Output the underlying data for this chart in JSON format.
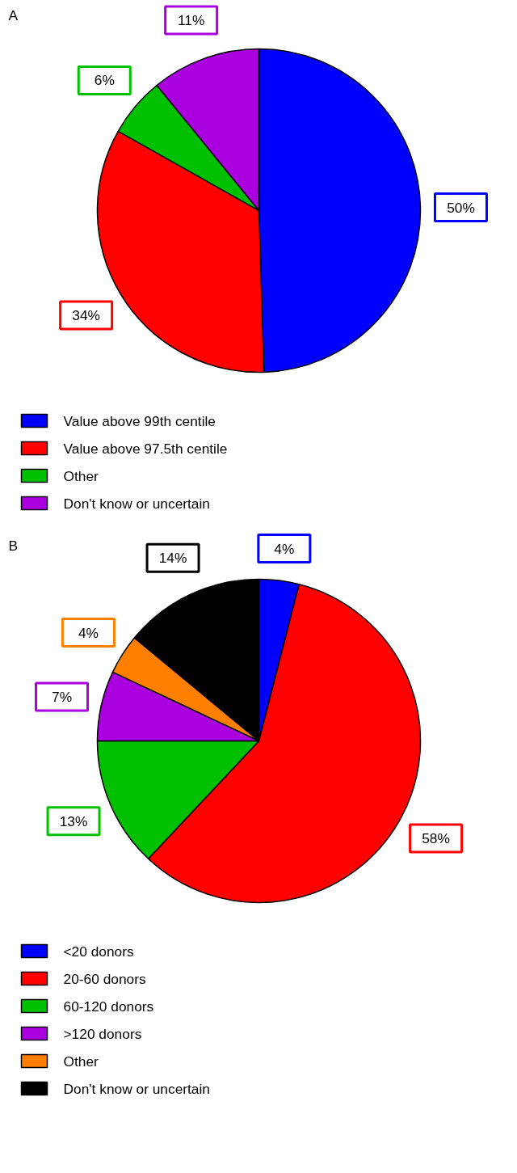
{
  "chart_data": [
    {
      "type": "pie",
      "title": "A",
      "categories": [
        "Value above 99th centile",
        "Value above 97.5th centile",
        "Other",
        "Don't know or uncertain"
      ],
      "values": [
        50,
        34,
        6,
        11
      ],
      "colors": [
        "#0000ff",
        "#ff0000",
        "#00c000",
        "#aa00e0"
      ],
      "value_labels": [
        "50%",
        "34%",
        "6%",
        "11%"
      ],
      "legend": "bottom"
    },
    {
      "type": "pie",
      "title": "B",
      "categories": [
        "<20 donors",
        "20-60 donors",
        "60-120 donors",
        ">120 donors",
        "Other",
        "Don't know or uncertain"
      ],
      "values": [
        4,
        58,
        13,
        7,
        4,
        14
      ],
      "colors": [
        "#0000ff",
        "#ff0000",
        "#00c000",
        "#aa00e0",
        "#ff8000",
        "#000000"
      ],
      "value_labels": [
        "4%",
        "58%",
        "13%",
        "7%",
        "4%",
        "14%"
      ],
      "legend": "bottom"
    }
  ]
}
